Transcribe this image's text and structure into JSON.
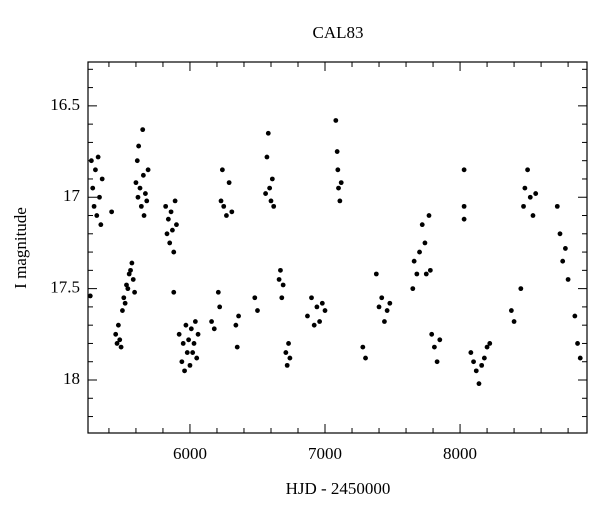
{
  "chart_data": {
    "type": "scatter",
    "title": "CAL83",
    "x_label": "HJD - 2450000",
    "y_label": "I magnitude",
    "xlim": [
      5245,
      8940
    ],
    "ylim": [
      16.26,
      18.29
    ],
    "y_inverted": true,
    "xticks": [
      6000,
      7000,
      8000
    ],
    "yticks": [
      16.5,
      17,
      17.5,
      18
    ],
    "xminor_ticks": [
      5400,
      5600,
      5800,
      6200,
      6400,
      6600,
      6800,
      7200,
      7400,
      7600,
      7800,
      8200,
      8400,
      8600,
      8800
    ],
    "yminor_ticks": [
      16.3,
      16.4,
      16.6,
      16.7,
      16.8,
      16.9,
      17.1,
      17.2,
      17.3,
      17.4,
      17.6,
      17.7,
      17.8,
      17.9,
      18.1,
      18.2
    ],
    "color": "#000000",
    "x": [
      5262,
      5270,
      5280,
      5290,
      5300,
      5310,
      5320,
      5330,
      5340,
      5350,
      5420,
      5450,
      5460,
      5470,
      5480,
      5490,
      5500,
      5510,
      5520,
      5530,
      5540,
      5550,
      5560,
      5570,
      5580,
      5590,
      5600,
      5610,
      5615,
      5620,
      5630,
      5640,
      5650,
      5655,
      5660,
      5670,
      5680,
      5690,
      5820,
      5830,
      5840,
      5850,
      5860,
      5870,
      5880,
      5890,
      5900,
      5880,
      5920,
      5940,
      5950,
      5960,
      5970,
      5980,
      5990,
      6000,
      6010,
      6020,
      6030,
      6040,
      6050,
      6060,
      6160,
      6180,
      6210,
      6220,
      6230,
      6240,
      6250,
      6270,
      6290,
      6310,
      6340,
      6350,
      6360,
      6480,
      6500,
      6560,
      6570,
      6580,
      6590,
      6600,
      6610,
      6620,
      6660,
      6670,
      6680,
      6690,
      6710,
      6720,
      6730,
      6740,
      6870,
      6900,
      6920,
      6940,
      6960,
      6980,
      7000,
      7080,
      7090,
      7095,
      7100,
      7110,
      7120,
      7280,
      7300,
      7380,
      7400,
      7420,
      7440,
      7460,
      7480,
      7650,
      7660,
      7680,
      7700,
      7720,
      7740,
      7750,
      7770,
      7780,
      7790,
      7810,
      7830,
      7850,
      8030,
      8030,
      8030,
      8080,
      8100,
      8120,
      8140,
      8160,
      8180,
      8200,
      8220,
      8380,
      8400,
      8450,
      8470,
      8480,
      8500,
      8520,
      8540,
      8560,
      8720,
      8740,
      8760,
      8780,
      8800,
      8850,
      8870,
      8890
    ],
    "y": [
      17.54,
      16.8,
      16.95,
      17.05,
      16.85,
      17.1,
      16.78,
      17.0,
      17.15,
      16.9,
      17.08,
      17.75,
      17.8,
      17.7,
      17.78,
      17.82,
      17.62,
      17.55,
      17.58,
      17.48,
      17.5,
      17.42,
      17.4,
      17.36,
      17.45,
      17.52,
      16.92,
      16.8,
      17.0,
      16.72,
      16.95,
      17.05,
      16.63,
      16.88,
      17.1,
      16.98,
      17.02,
      16.85,
      17.05,
      17.2,
      17.12,
      17.25,
      17.08,
      17.18,
      17.3,
      17.02,
      17.15,
      17.52,
      17.75,
      17.9,
      17.8,
      17.95,
      17.7,
      17.85,
      17.78,
      17.92,
      17.72,
      17.85,
      17.8,
      17.68,
      17.88,
      17.75,
      17.68,
      17.72,
      17.52,
      17.6,
      17.02,
      16.85,
      17.05,
      17.1,
      16.92,
      17.08,
      17.7,
      17.82,
      17.65,
      17.55,
      17.62,
      16.98,
      16.78,
      16.65,
      16.95,
      17.02,
      16.9,
      17.05,
      17.45,
      17.4,
      17.55,
      17.48,
      17.85,
      17.92,
      17.8,
      17.88,
      17.65,
      17.55,
      17.7,
      17.6,
      17.68,
      17.58,
      17.62,
      16.58,
      16.75,
      16.85,
      16.95,
      17.02,
      16.92,
      17.82,
      17.88,
      17.42,
      17.6,
      17.55,
      17.68,
      17.62,
      17.58,
      17.5,
      17.35,
      17.42,
      17.3,
      17.15,
      17.25,
      17.42,
      17.1,
      17.4,
      17.75,
      17.82,
      17.9,
      17.78,
      16.85,
      17.05,
      17.12,
      17.85,
      17.9,
      17.95,
      18.02,
      17.92,
      17.88,
      17.82,
      17.8,
      17.62,
      17.68,
      17.5,
      17.05,
      16.95,
      16.85,
      17.0,
      17.1,
      16.98,
      17.05,
      17.2,
      17.35,
      17.28,
      17.45,
      17.65,
      17.8,
      17.88
    ]
  }
}
